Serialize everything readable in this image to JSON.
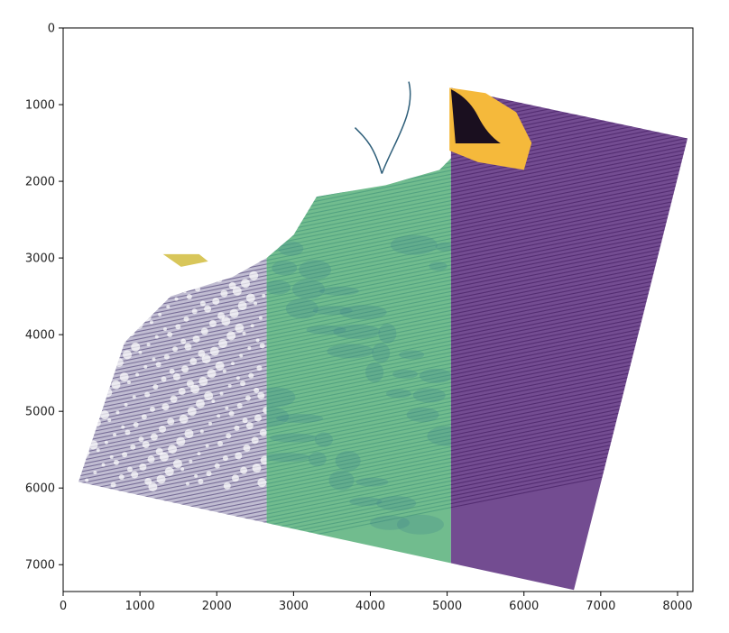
{
  "chart_data": {
    "type": "heatmap",
    "title": "",
    "xlabel": "",
    "ylabel": "",
    "xlim": [
      0,
      8200
    ],
    "ylim": [
      7350,
      0
    ],
    "y_inverted": true,
    "grid": false,
    "legend": "none",
    "x_ticks": [
      0,
      1000,
      2000,
      3000,
      4000,
      5000,
      6000,
      7000,
      8000
    ],
    "y_ticks": [
      0,
      1000,
      2000,
      3000,
      4000,
      5000,
      6000,
      7000
    ],
    "colormap": "viridis",
    "colormap_colors": [
      "#440154",
      "#3b528b",
      "#21918c",
      "#5ec962",
      "#fde725"
    ],
    "scan_footprint_corners": [
      [
        2000,
        2670
      ],
      [
        8130,
        1440
      ],
      [
        6650,
        7330
      ],
      [
        200,
        5920
      ]
    ],
    "strips": [
      {
        "x_range": [
          200,
          2650
        ],
        "description_level": "sparse",
        "mean_value": 0.35
      },
      {
        "x_range": [
          2650,
          5050
        ],
        "description_level": "green",
        "mean_value": 0.6
      },
      {
        "x_range": [
          5050,
          8130
        ],
        "description_level": "purple",
        "mean_value": 0.05
      }
    ],
    "bright_land_patch": {
      "x": [
        5030,
        6100
      ],
      "y": [
        780,
        1850
      ],
      "value": 0.95
    },
    "colors": {
      "axis": "#000000",
      "strip1": "#4a3f7a",
      "strip2": "#58b07a",
      "strip3": "#5a2d7e",
      "land_hot": "#f5b93b"
    }
  }
}
